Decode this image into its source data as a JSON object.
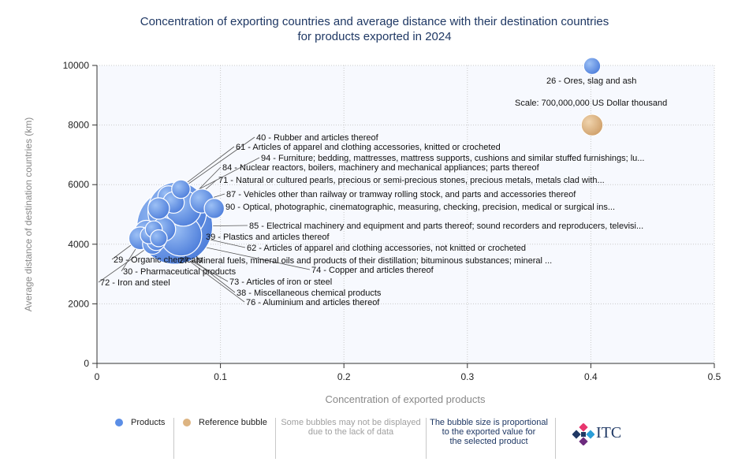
{
  "chart_data": {
    "type": "scatter",
    "title": "Concentration of exporting countries and average distance with their destination countries",
    "subtitle": "for products exported in 2024",
    "xlabel": "Concentration of exported products",
    "ylabel": "Average distance of destination countries (km)",
    "xlim": [
      0,
      0.5
    ],
    "ylim": [
      0,
      10000
    ],
    "x_ticks": [
      "0",
      "0.1",
      "0.2",
      "0.3",
      "0.4",
      "0.5"
    ],
    "y_ticks": [
      "0",
      "2000",
      "4000",
      "6000",
      "8000",
      "10000"
    ],
    "grid": true,
    "points": [
      {
        "x": 0.063,
        "y": 4600,
        "size": 1.0,
        "label": "85 - Electrical machinery and equipment and parts thereof; sound recorders and reproducers, televisi..."
      },
      {
        "x": 0.065,
        "y": 5100,
        "size": 0.6,
        "label": "84 - Nuclear reactors, boilers, machinery and mechanical appliances; parts thereof"
      },
      {
        "x": 0.068,
        "y": 4300,
        "size": 0.3,
        "label": "27 - Mineral fuels, mineral oils and products of their distillation; bituminous substances; mineral ..."
      },
      {
        "x": 0.07,
        "y": 5200,
        "size": 0.22,
        "label": "71 - Natural or cultured pearls, precious or semi-precious stones, precious metals, metals clad with..."
      },
      {
        "x": 0.085,
        "y": 5450,
        "size": 0.1,
        "label": "87 - Vehicles other than railway or tramway rolling stock, and parts and accessories thereof"
      },
      {
        "x": 0.095,
        "y": 5200,
        "size": 0.07,
        "label": "90 - Optical, photographic, cinematographic, measuring, checking, precision, medical or surgical ins..."
      },
      {
        "x": 0.068,
        "y": 5850,
        "size": 0.06,
        "label": "40 - Rubber and articles thereof"
      },
      {
        "x": 0.058,
        "y": 5600,
        "size": 0.08,
        "label": "61 - Articles of apparel and clothing accessories, knitted or crocheted"
      },
      {
        "x": 0.062,
        "y": 5400,
        "size": 0.08,
        "label": "94 - Furniture; bedding, mattresses, mattress supports, cushions and similar stuffed furnishings; lu..."
      },
      {
        "x": 0.05,
        "y": 5200,
        "size": 0.08,
        "label": "39 - Plastics and articles thereof"
      },
      {
        "x": 0.054,
        "y": 4500,
        "size": 0.1,
        "label": "62 - Articles of apparel and clothing accessories, not knitted or crocheted"
      },
      {
        "x": 0.035,
        "y": 4200,
        "size": 0.09,
        "label": "29 - Organic chemicals"
      },
      {
        "x": 0.04,
        "y": 4400,
        "size": 0.1,
        "label": "30 - Pharmaceutical products"
      },
      {
        "x": 0.045,
        "y": 4000,
        "size": 0.07,
        "label": "72 - Iron and steel"
      },
      {
        "x": 0.042,
        "y": 4300,
        "size": 0.05,
        "label": "74 - Copper and articles thereof"
      },
      {
        "x": 0.048,
        "y": 4100,
        "size": 0.06,
        "label": "73 - Articles of iron or steel"
      },
      {
        "x": 0.046,
        "y": 4500,
        "size": 0.05,
        "label": "38 - Miscellaneous chemical products"
      },
      {
        "x": 0.05,
        "y": 4200,
        "size": 0.05,
        "label": "76 - Aluminium and articles thereof"
      },
      {
        "x": 0.401,
        "y": 9980,
        "size": 0.05,
        "label": "26 - Ores, slag and ash"
      }
    ],
    "reference_bubble": {
      "x": 0.401,
      "y": 8000,
      "label": "Scale: 700,000,000 US Dollar thousand"
    },
    "colors": {
      "products": "#5b8ee6",
      "reference": "#ddb482",
      "title": "#1f3864"
    }
  },
  "legend": {
    "products": "Products",
    "reference": "Reference bubble",
    "note_line1": "Some bubbles may not be displayed",
    "note_line2": "due to the lack of data",
    "size_line1": "The bubble size is proportional",
    "size_line2": "to the exported value for",
    "size_line3": "the selected product",
    "logo_text": "ITC"
  }
}
